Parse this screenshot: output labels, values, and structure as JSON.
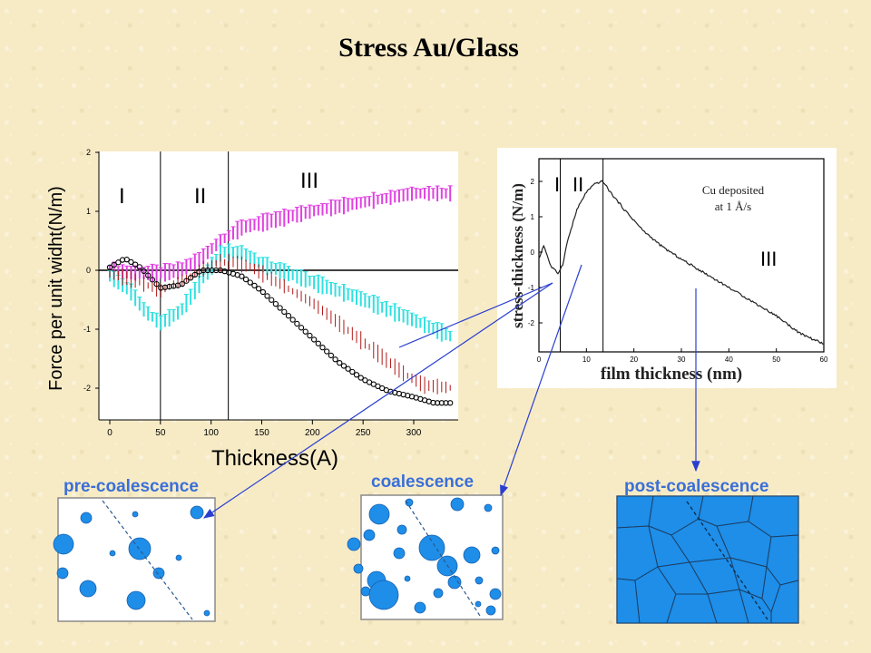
{
  "title": "Stress Au/Glass",
  "left_chart": {
    "xlabel": "Thickness(A)",
    "ylabel": "Force per unit widht(N/m)",
    "region_labels": [
      "I",
      "II",
      "III"
    ],
    "colors": {
      "magenta": "#e040e0",
      "cyan": "#30e0e0",
      "red": "#b01818",
      "black": "#000000"
    }
  },
  "right_chart": {
    "xlabel": "film thickness (nm)",
    "ylabel": "stress-thickness (N/m)",
    "annotation_line1": "Cu deposited",
    "annotation_line2": "at 1 Å/s",
    "region_labels": [
      "I",
      "II",
      "III"
    ]
  },
  "panels": {
    "pre": "pre-coalescence",
    "coal": "coalescence",
    "post": "post-coalescence",
    "color": "#3a6fd8"
  },
  "chart_data": [
    {
      "type": "line",
      "xlabel": "Thickness(A)",
      "ylabel": "Force per unit widht(N/m)",
      "xlim": [
        -10,
        340
      ],
      "ylim": [
        -2.5,
        2
      ],
      "xticks": [
        0,
        50,
        100,
        150,
        200,
        250,
        300
      ],
      "yticks": [
        -2,
        -1,
        0,
        1,
        2
      ],
      "region_boundaries_x": [
        50,
        117
      ],
      "series": [
        {
          "color": "magenta",
          "x": [
            0,
            25,
            50,
            70,
            90,
            110,
            130,
            150,
            200,
            250,
            300,
            340
          ],
          "y": [
            0,
            -0.05,
            -0.05,
            0,
            0.2,
            0.5,
            0.72,
            0.8,
            1.0,
            1.15,
            1.3,
            1.3
          ]
        },
        {
          "color": "cyan",
          "x": [
            0,
            20,
            35,
            50,
            70,
            90,
            110,
            130,
            150,
            200,
            250,
            300,
            340
          ],
          "y": [
            -0.1,
            -0.35,
            -0.7,
            -0.9,
            -0.7,
            -0.2,
            0.3,
            0.3,
            0.1,
            -0.2,
            -0.5,
            -0.85,
            -1.15
          ]
        },
        {
          "color": "red",
          "x": [
            0,
            30,
            50,
            80,
            100,
            120,
            140,
            170,
            200,
            230,
            260,
            290,
            310,
            340
          ],
          "y": [
            -0.05,
            -0.2,
            -0.35,
            -0.1,
            0.1,
            0.15,
            0.05,
            -0.25,
            -0.55,
            -0.95,
            -1.35,
            -1.75,
            -1.95,
            -2.0
          ]
        },
        {
          "color": "black",
          "x": [
            0,
            15,
            30,
            50,
            70,
            90,
            110,
            130,
            150,
            175,
            200,
            225,
            250,
            275,
            300,
            320,
            340
          ],
          "y": [
            0.05,
            0.2,
            0.05,
            -0.3,
            -0.25,
            0,
            0,
            -0.1,
            -0.35,
            -0.75,
            -1.15,
            -1.55,
            -1.85,
            -2.05,
            -2.15,
            -2.25,
            -2.25
          ]
        }
      ]
    },
    {
      "type": "line",
      "xlabel": "film thickness (nm)",
      "ylabel": "stress-thickness (N/m)",
      "xlim": [
        0,
        60
      ],
      "ylim": [
        -2.8,
        2.6
      ],
      "xticks": [
        0,
        10,
        20,
        30,
        40,
        50,
        60
      ],
      "yticks": [
        -2,
        -1,
        0,
        1,
        2
      ],
      "region_boundaries_x": [
        4.5,
        13.5
      ],
      "series": [
        {
          "color": "black",
          "x": [
            0,
            1,
            2.5,
            4,
            5,
            6,
            8,
            10,
            12,
            13.5,
            15,
            18,
            22,
            26,
            30,
            35,
            40,
            45,
            50,
            55,
            60
          ],
          "y": [
            -0.2,
            0.2,
            -0.4,
            -0.6,
            -0.35,
            0.3,
            1.2,
            1.7,
            1.95,
            2.0,
            1.7,
            1.2,
            0.6,
            0.15,
            -0.2,
            -0.6,
            -1.0,
            -1.4,
            -1.8,
            -2.3,
            -2.6
          ]
        }
      ]
    }
  ]
}
